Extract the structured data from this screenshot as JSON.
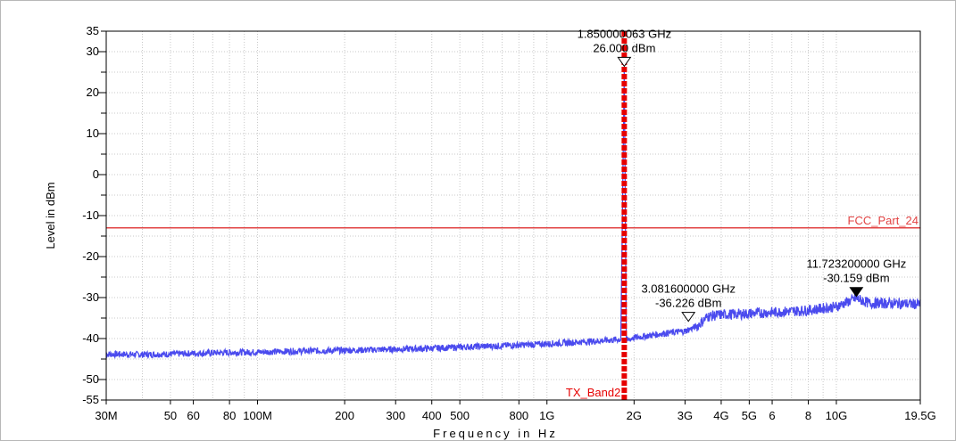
{
  "chart_data": {
    "type": "line",
    "xlabel": "Frequency in Hz",
    "ylabel": "Level in dBm",
    "xscale": "log",
    "xlim": [
      30000000,
      19500000000
    ],
    "ylim": [
      -55,
      35
    ],
    "grid": true,
    "y_ticks": [
      35,
      30,
      20,
      10,
      0,
      -10,
      -20,
      -30,
      -40,
      -50,
      -55
    ],
    "y_tick_labels": [
      "35",
      "30",
      "20",
      "10",
      "0",
      "-10",
      "-20",
      "-30",
      "-40",
      "-50",
      "-55"
    ],
    "x_ticks": [
      {
        "value": 30000000,
        "label": "30M"
      },
      {
        "value": 50000000,
        "label": "50"
      },
      {
        "value": 60000000,
        "label": "60"
      },
      {
        "value": 80000000,
        "label": "80"
      },
      {
        "value": 100000000,
        "label": "100M"
      },
      {
        "value": 200000000,
        "label": "200"
      },
      {
        "value": 300000000,
        "label": "300"
      },
      {
        "value": 400000000,
        "label": "400"
      },
      {
        "value": 500000000,
        "label": "500"
      },
      {
        "value": 800000000,
        "label": "800"
      },
      {
        "value": 1000000000,
        "label": "1G"
      },
      {
        "value": 2000000000,
        "label": "2G"
      },
      {
        "value": 3000000000,
        "label": "3G"
      },
      {
        "value": 4000000000,
        "label": "4G"
      },
      {
        "value": 5000000000,
        "label": "5G"
      },
      {
        "value": 6000000000,
        "label": "6"
      },
      {
        "value": 8000000000,
        "label": "8"
      },
      {
        "value": 10000000000,
        "label": "10G"
      },
      {
        "value": 19500000000,
        "label": "19.5G"
      }
    ],
    "series": [
      {
        "color": "#4a4aee",
        "points": [
          [
            30000000,
            -43.8
          ],
          [
            40000000,
            -43.9
          ],
          [
            50000000,
            -43.8
          ],
          [
            60000000,
            -43.6
          ],
          [
            80000000,
            -43.4
          ],
          [
            100000000,
            -43.3
          ],
          [
            150000000,
            -43.0
          ],
          [
            200000000,
            -42.9
          ],
          [
            300000000,
            -42.6
          ],
          [
            400000000,
            -42.4
          ],
          [
            500000000,
            -42.1
          ],
          [
            800000000,
            -41.6
          ],
          [
            1000000000,
            -41.3
          ],
          [
            1500000000,
            -40.6
          ],
          [
            1800000000,
            -40.2
          ],
          [
            1850000000,
            26.0
          ],
          [
            1880000000,
            -40.5
          ],
          [
            2000000000,
            -39.8
          ],
          [
            2500000000,
            -38.8
          ],
          [
            3000000000,
            -38.2
          ],
          [
            3300000000,
            -37.0
          ],
          [
            3600000000,
            -34.6
          ],
          [
            4000000000,
            -34.2
          ],
          [
            5000000000,
            -33.9
          ],
          [
            6000000000,
            -33.6
          ],
          [
            8000000000,
            -33.1
          ],
          [
            10000000000,
            -32.2
          ],
          [
            11723200000,
            -30.2
          ],
          [
            13000000000,
            -31.4
          ],
          [
            16000000000,
            -31.4
          ],
          [
            19500000000,
            -31.6
          ]
        ]
      }
    ],
    "limit_line": {
      "name": "FCC_Part_24",
      "level": -13,
      "color": "#e24444"
    },
    "band_marker": {
      "name": "TX_Band2",
      "frequency": 1850000000,
      "color": "#e60000"
    },
    "markers": [
      {
        "frequency": 1850000063,
        "level": 26.0,
        "filled": false,
        "label_freq": "1.850000063 GHz",
        "label_level": "26.000 dBm"
      },
      {
        "frequency": 3081600000,
        "level": -36.226,
        "filled": false,
        "label_freq": "3.081600000 GHz",
        "label_level": "-36.226 dBm"
      },
      {
        "frequency": 11723200000,
        "level": -30.159,
        "filled": true,
        "label_freq": "11.723200000 GHz",
        "label_level": "-30.159 dBm"
      }
    ]
  }
}
